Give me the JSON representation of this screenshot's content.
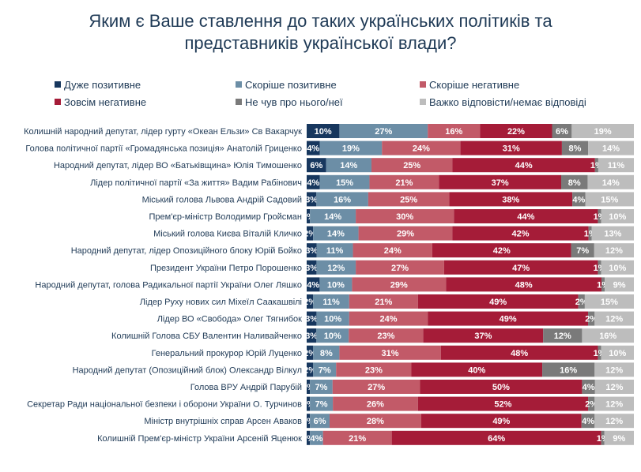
{
  "title_line1": "Яким є Ваше ставлення до таких українських політиків та",
  "title_line2": "представників української влади?",
  "chart_data": {
    "type": "bar",
    "orientation": "horizontal",
    "stacked": true,
    "xlim": [
      0,
      100
    ],
    "legend_position": "top",
    "categories": [
      "Колишній народний депутат, лідер гурту  «Океан Ельзи» Св Вакарчук",
      "Голова політичної партії «Громадянська позиція» Анатолій Гриценко",
      "Народний депутат, лідер ВО «Батьківщина» Юлія Тимошенко",
      "Лідер політичної партії «За життя» Вадим Рабінович",
      "Міський голова Львова Андрій Садовий",
      "Прем'єр-міністр Володимир Гройсман",
      "Міський голова Києва Віталій Кличко",
      "Народний депутат, лідер Опозиційного блоку Юрій Бойко",
      "Президент України Петро Порошенко",
      "Народний депутат, голова Радикальної партії України Олег Ляшко",
      "Лідер Руху нових сил Міхеїл Саакашвілі",
      "Лідер ВО «Свобода» Олег Тягнибок",
      "Колишній Голова СБУ Валентин Наливайченко",
      "Генеральний прокурор Юрій Луценко",
      "Народний депутат (Опозиційний блок) Олександр Вілкул",
      "Голова ВРУ Андрій Парубій",
      "Секретар Ради національної безпеки і оборони України О. Турчинов",
      "Міністр внутрішніх справ Арсен Аваков",
      "Колишній Прем'єр-міністр України Арсеній Яценюк"
    ],
    "series": [
      {
        "name": "Дуже позитивне",
        "color": "#17375e",
        "text_color": "#ffffff",
        "values": [
          10,
          4,
          6,
          4,
          3,
          1,
          2,
          3,
          3,
          4,
          2,
          3,
          3,
          2,
          2,
          1,
          1,
          1,
          1
        ]
      },
      {
        "name": "Скоріше позитивне",
        "color": "#6c8ea6",
        "text_color": "#ffffff",
        "values": [
          27,
          19,
          14,
          15,
          16,
          14,
          14,
          11,
          12,
          10,
          11,
          10,
          10,
          8,
          7,
          7,
          7,
          6,
          4
        ]
      },
      {
        "name": "Скоріше негативне",
        "color": "#c25a68",
        "text_color": "#ffffff",
        "values": [
          16,
          24,
          25,
          21,
          25,
          30,
          29,
          24,
          27,
          29,
          21,
          24,
          23,
          31,
          23,
          27,
          26,
          28,
          21
        ]
      },
      {
        "name": "Зовсім негативне",
        "color": "#a51c38",
        "text_color": "#ffffff",
        "values": [
          22,
          31,
          44,
          37,
          38,
          44,
          42,
          42,
          47,
          48,
          49,
          49,
          37,
          48,
          40,
          50,
          52,
          49,
          64
        ]
      },
      {
        "name": "Не чув про нього/неї",
        "color": "#7a7a7a",
        "text_color": "#ffffff",
        "values": [
          6,
          8,
          1,
          8,
          4,
          1,
          1,
          7,
          1,
          1,
          2,
          2,
          12,
          1,
          16,
          4,
          2,
          4,
          1
        ]
      },
      {
        "name": "Важко відповісти/немає відповіді",
        "color": "#bdbdbd",
        "text_color": "#ffffff",
        "values": [
          19,
          14,
          11,
          14,
          15,
          10,
          13,
          12,
          10,
          9,
          15,
          12,
          16,
          10,
          12,
          12,
          12,
          12,
          9
        ]
      }
    ]
  }
}
